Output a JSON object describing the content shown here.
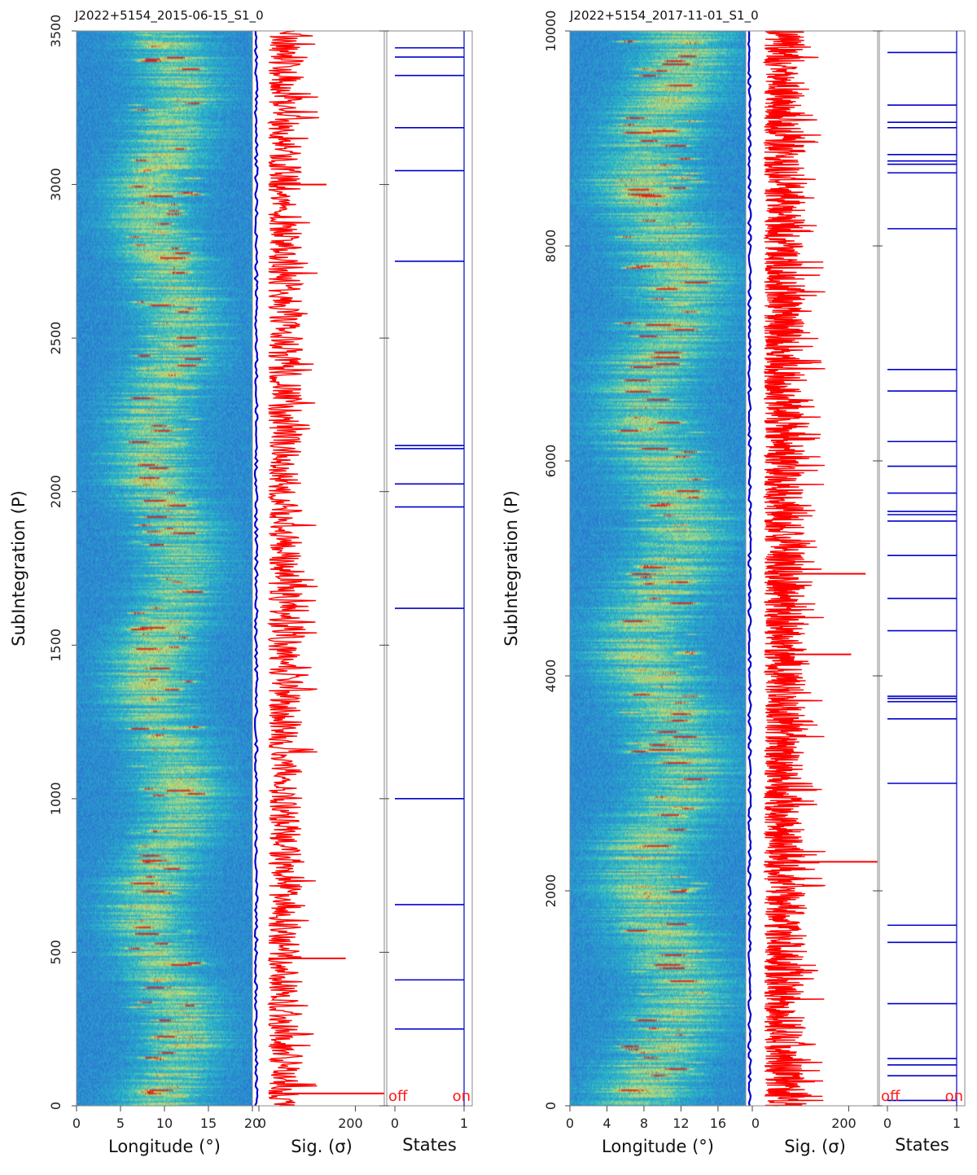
{
  "colors": {
    "heatmap_low": "#2f5fd6",
    "heatmap_mid": "#27b8c8",
    "heatmap_high": "#c8e070",
    "heatmap_peak": "#d8241c",
    "mean_profile": "#0000cc",
    "significance": "#ff0000",
    "state_lines": "#0000cc",
    "axis": "#888888"
  },
  "chart_data": [
    {
      "type": "heatmap",
      "title": "J2022+5154_2015-06-15_S1_0",
      "ylabel": "SubIntegration (P)",
      "ylim": [
        0,
        3500
      ],
      "yticks": [
        "0",
        "500",
        "1000",
        "1500",
        "2000",
        "2500",
        "3000",
        "3500"
      ],
      "ytick_values": [
        0,
        500,
        1000,
        1500,
        2000,
        2500,
        3000,
        3500
      ],
      "panels": {
        "longitude": {
          "xlabel": "Longitude (°)",
          "xlim": [
            0,
            20
          ],
          "xticks": [
            "0",
            "5",
            "10",
            "15",
            "20"
          ],
          "xtick_values": [
            0,
            5,
            10,
            15,
            20
          ],
          "pulse_center": 10,
          "pulse_width": 4.5
        },
        "significance": {
          "xlabel": "Sig. (σ)",
          "xlim": [
            0,
            260
          ],
          "xticks": [
            "0",
            "200"
          ],
          "xtick_values": [
            0,
            200
          ],
          "typical_range": [
            20,
            90
          ],
          "peaks": [
            {
              "y": 3000,
              "value": 140
            },
            {
              "y": 480,
              "value": 180
            },
            {
              "y": 40,
              "value": 260
            }
          ]
        },
        "states": {
          "xlabel": "States",
          "xlim": [
            0,
            1
          ],
          "xticks": [
            "0",
            "1"
          ],
          "xtick_values": [
            0,
            1
          ],
          "off_label": "off",
          "on_label": "on",
          "off_events": [
            250,
            410,
            655,
            1000,
            1620,
            1950,
            2025,
            2140,
            2150,
            2750,
            3045,
            3185,
            3355,
            3415,
            3445
          ]
        }
      }
    },
    {
      "type": "heatmap",
      "title": "J2022+5154_2017-11-01_S1_0",
      "ylabel": "SubIntegration (P)",
      "ylim": [
        0,
        10000
      ],
      "yticks": [
        "0",
        "2000",
        "4000",
        "6000",
        "8000",
        "10000"
      ],
      "ytick_values": [
        0,
        2000,
        4000,
        6000,
        8000,
        10000
      ],
      "panels": {
        "longitude": {
          "xlabel": "Longitude (°)",
          "xlim": [
            0,
            19
          ],
          "xticks": [
            "0",
            "4",
            "8",
            "12",
            "16"
          ],
          "xtick_values": [
            0,
            4,
            8,
            12,
            16
          ],
          "pulse_center": 10,
          "pulse_width": 5
        },
        "significance": {
          "xlabel": "Sig. (σ)",
          "xlim": [
            0,
            260
          ],
          "xticks": [
            "0",
            "200"
          ],
          "xtick_values": [
            0,
            200
          ],
          "typical_range": [
            25,
            110
          ],
          "peaks": [
            {
              "y": 4950,
              "value": 235
            },
            {
              "y": 2270,
              "value": 260
            },
            {
              "y": 4200,
              "value": 205
            }
          ]
        },
        "states": {
          "xlabel": "States",
          "xlim": [
            0,
            1
          ],
          "xticks": [
            "0",
            "1"
          ],
          "xtick_values": [
            0,
            1
          ],
          "off_label": "off",
          "on_label": "on",
          "off_events": [
            50,
            280,
            380,
            440,
            950,
            1520,
            1680,
            3000,
            3600,
            3760,
            3790,
            3810,
            4420,
            4720,
            5120,
            5440,
            5500,
            5530,
            5700,
            5950,
            6180,
            6650,
            6850,
            8160,
            8680,
            8760,
            8790,
            8850,
            9100,
            9150,
            9310,
            9800
          ]
        }
      }
    }
  ]
}
